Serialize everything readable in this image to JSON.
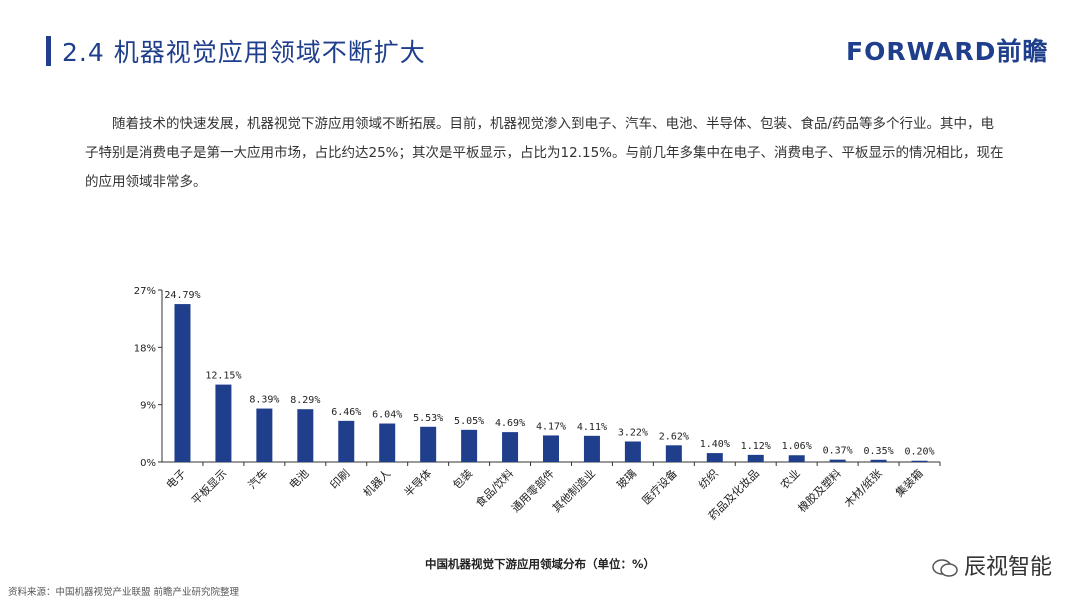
{
  "header": {
    "title": "2.4 机器视觉应用领域不断扩大",
    "logo": "FORWARD前瞻"
  },
  "intro": "随着技术的快速发展，机器视觉下游应用领域不断拓展。目前，机器视觉渗入到电子、汽车、电池、半导体、包装、食品/药品等多个行业。其中，电子特别是消费电子是第一大应用市场，占比约达25%；其次是平板显示，占比为12.15%。与前几年多集中在电子、消费电子、平板显示的情况相比，现在的应用领域非常多。",
  "chart_data": {
    "type": "bar",
    "title": "中国机器视觉下游应用领域分布（单位：%）",
    "categories": [
      "电子",
      "平板显示",
      "汽车",
      "电池",
      "印刷",
      "机器人",
      "半导体",
      "包装",
      "食品/饮料",
      "通用零部件",
      "其他制造业",
      "玻璃",
      "医疗设备",
      "纺织",
      "药品及化妆品",
      "农业",
      "橡胶及塑料",
      "木材/纸张",
      "集装箱"
    ],
    "values": [
      24.79,
      12.15,
      8.39,
      8.29,
      6.46,
      6.04,
      5.53,
      5.05,
      4.69,
      4.17,
      4.11,
      3.22,
      2.62,
      1.4,
      1.12,
      1.06,
      0.37,
      0.35,
      0.2
    ],
    "value_labels": [
      "24.79%",
      "12.15%",
      "8.39%",
      "8.29%",
      "6.46%",
      "6.04%",
      "5.53%",
      "5.05%",
      "4.69%",
      "4.17%",
      "4.11%",
      "3.22%",
      "2.62%",
      "1.40%",
      "1.12%",
      "1.06%",
      "0.37%",
      "0.35%",
      "0.20%"
    ],
    "ylim": [
      0,
      27
    ],
    "yticks": [
      0,
      9,
      18,
      27
    ],
    "ytick_labels": [
      "0%",
      "9%",
      "18%",
      "27%"
    ],
    "bar_color": "#1f3e8c",
    "grid": false
  },
  "footer": {
    "source": "资料来源：中国机器视觉产业联盟 前瞻产业研究院整理",
    "brand": "辰视智能"
  },
  "colors": {
    "accent": "#1f3e8c"
  }
}
